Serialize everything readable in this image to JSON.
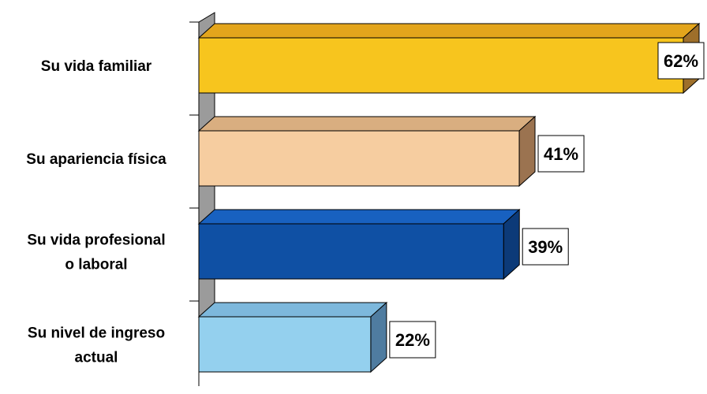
{
  "chart_data": {
    "type": "bar",
    "orientation": "horizontal",
    "style": "3d",
    "title": "",
    "xlabel": "",
    "ylabel": "",
    "grid": false,
    "legend": "none",
    "unit": "%",
    "xlim": [
      0,
      62
    ],
    "categories": [
      "Su vida familiar",
      "Su apariencia física",
      "Su vida profesional o laboral",
      "Su nivel de ingreso actual"
    ],
    "category_lines": [
      [
        "Su vida familiar"
      ],
      [
        "Su apariencia física"
      ],
      [
        "Su vida profesional",
        "o laboral"
      ],
      [
        "Su nivel de ingreso",
        "actual"
      ]
    ],
    "values": [
      62,
      41,
      39,
      22
    ],
    "value_labels": [
      "62%",
      "41%",
      "39%",
      "22%"
    ],
    "colors": [
      {
        "front": "#F7C51E",
        "top": "#E3A51C",
        "side": "#9E6F2A"
      },
      {
        "front": "#F6CDA0",
        "top": "#D9AE80",
        "side": "#9B7350"
      },
      {
        "front": "#0F50A4",
        "top": "#1861C0",
        "side": "#0C3A78"
      },
      {
        "front": "#94D0EE",
        "top": "#7DB8DC",
        "side": "#4F7CA0"
      }
    ],
    "axis_wall_color": "#9B9B9B"
  }
}
